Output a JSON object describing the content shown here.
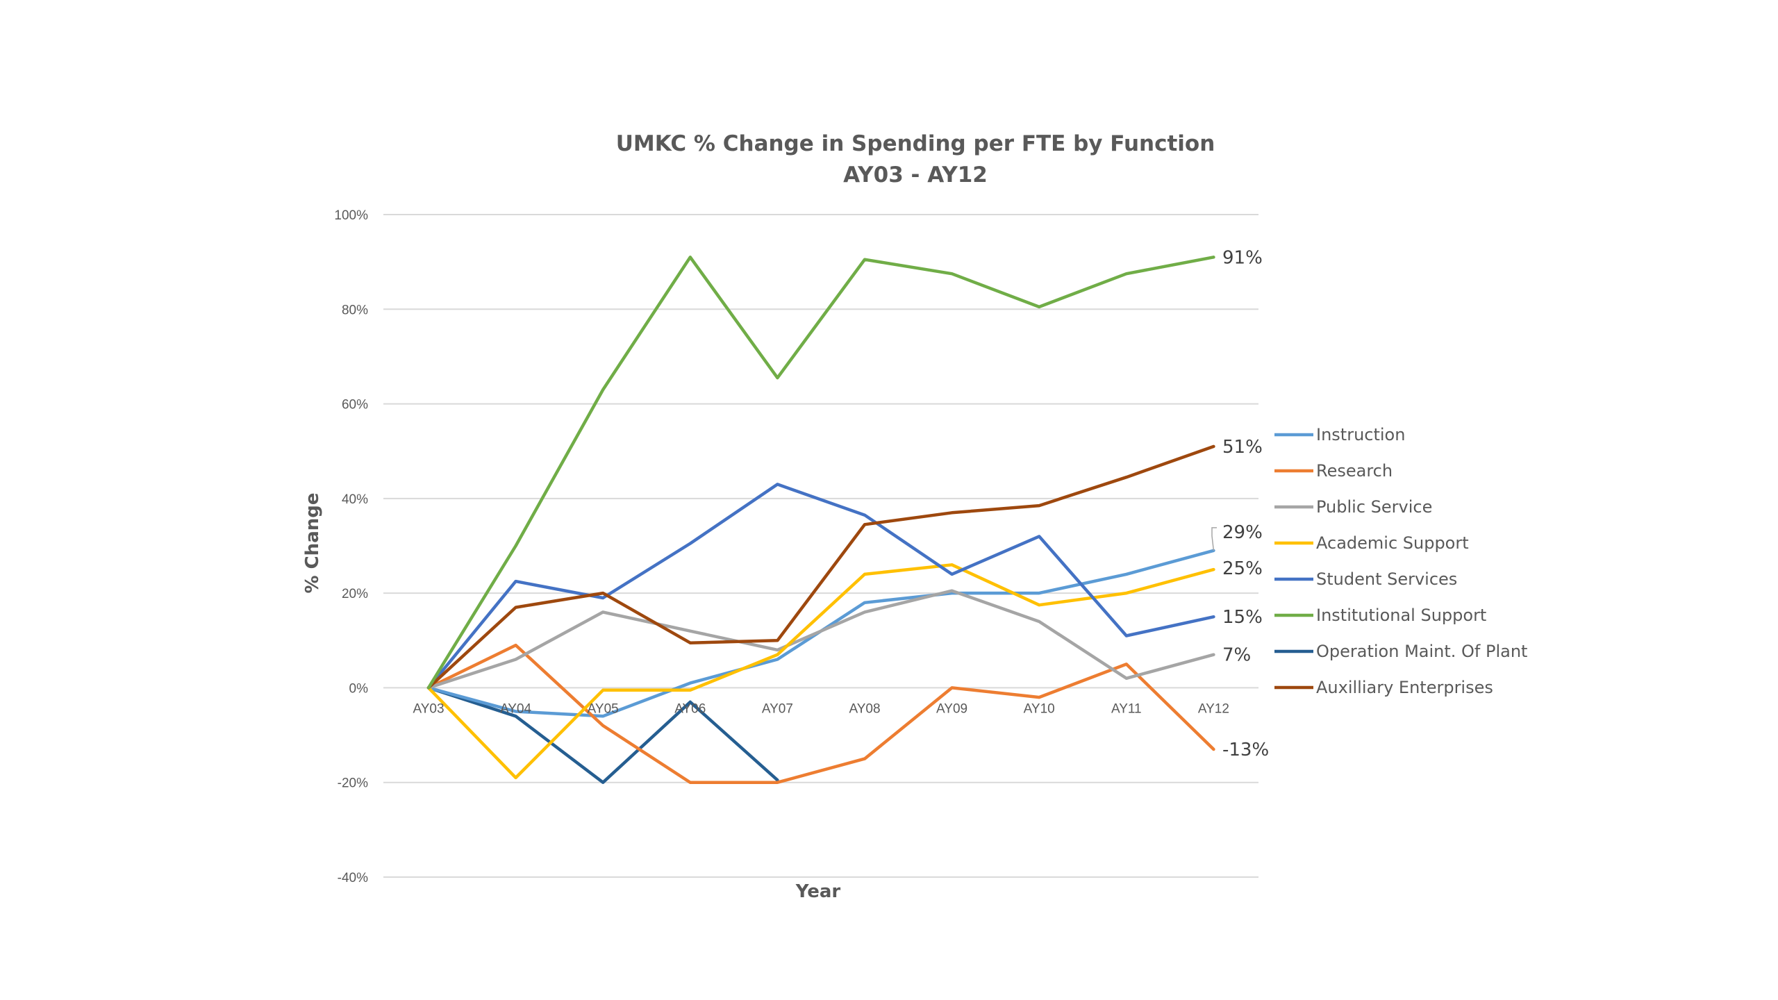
{
  "chart_data": {
    "type": "line",
    "title": "UMKC % Change in Spending per FTE by Function",
    "subtitle": "AY03 - AY12",
    "xlabel": "Year",
    "ylabel": "% Change",
    "ylim": [
      -40,
      100
    ],
    "y_ticks": [
      -40,
      -20,
      0,
      20,
      40,
      60,
      80,
      100
    ],
    "y_tick_labels": [
      "-40%",
      "-20%",
      "0%",
      "20%",
      "40%",
      "60%",
      "80%",
      "100%"
    ],
    "categories": [
      "AY03",
      "AY04",
      "AY05",
      "AY06",
      "AY07",
      "AY08",
      "AY09",
      "AY10",
      "AY11",
      "AY12"
    ],
    "grid": true,
    "legend_position": "right",
    "series": [
      {
        "name": "Instruction",
        "color": "#5b9bd5",
        "values": [
          0,
          -5,
          -6,
          1,
          6,
          18,
          20,
          20,
          24,
          29
        ]
      },
      {
        "name": "Research",
        "color": "#ed7d31",
        "values": [
          0,
          9,
          -8,
          -20,
          -20,
          -15,
          0,
          -2,
          5,
          -13
        ]
      },
      {
        "name": "Public Service",
        "color": "#a5a5a5",
        "values": [
          0,
          6,
          16,
          12,
          8,
          16,
          20.5,
          14,
          2,
          7
        ]
      },
      {
        "name": "Academic Support",
        "color": "#ffc000",
        "values": [
          0,
          -19,
          -0.5,
          -0.5,
          7,
          24,
          26,
          17.5,
          20,
          25
        ]
      },
      {
        "name": "Student Services",
        "color": "#4472c4",
        "values": [
          0,
          22.5,
          19,
          30.5,
          43,
          36.5,
          24,
          32,
          11,
          15
        ]
      },
      {
        "name": "Institutional Support",
        "color": "#70ad47",
        "values": [
          0,
          30,
          63,
          91,
          65.5,
          90.5,
          87.5,
          80.5,
          87.5,
          91
        ]
      },
      {
        "name": "Operation Maint. Of Plant",
        "color": "#255e91",
        "values": [
          0,
          -6,
          -20,
          -3,
          -19.5,
          null,
          null,
          null,
          null,
          null
        ]
      },
      {
        "name": "Auxilliary Enterprises",
        "color": "#9e480e",
        "values": [
          0,
          17,
          20,
          9.5,
          10,
          34.5,
          37,
          38.5,
          44.5,
          51
        ]
      }
    ],
    "end_labels": [
      {
        "text": "91%",
        "series": "Institutional Support"
      },
      {
        "text": "51%",
        "series": "Auxilliary Enterprises"
      },
      {
        "text": "29%",
        "series": "Instruction"
      },
      {
        "text": "25%",
        "series": "Academic Support"
      },
      {
        "text": "15%",
        "series": "Student Services"
      },
      {
        "text": "7%",
        "series": "Public Service"
      },
      {
        "text": "-13%",
        "series": "Research"
      }
    ]
  }
}
